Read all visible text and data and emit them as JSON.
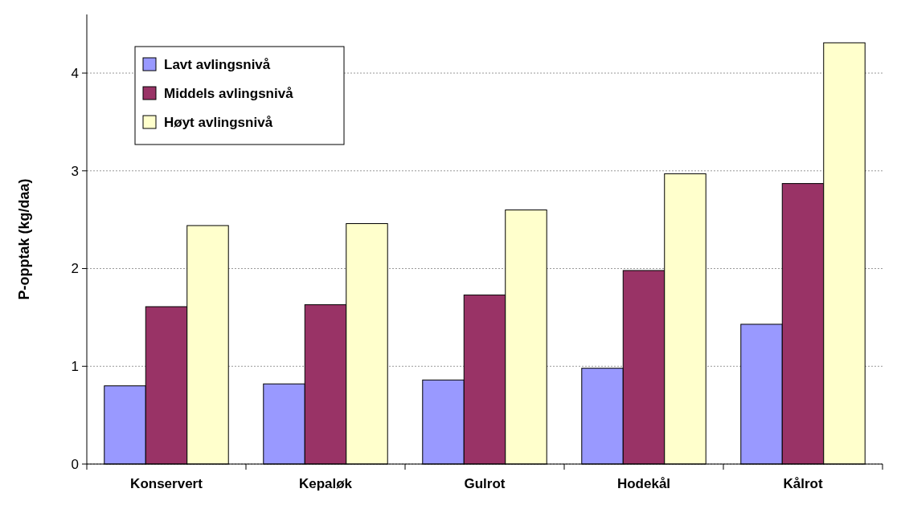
{
  "chart_data": {
    "type": "bar",
    "ylabel": "P-opptak (kg/daa)",
    "categories": [
      "Konservert",
      "Kepaløk",
      "Gulrot",
      "Hodekål",
      "Kålrot"
    ],
    "series": [
      {
        "name": "Lavt avlingsnivå",
        "color": "#9999ff",
        "values": [
          0.8,
          0.82,
          0.86,
          0.98,
          1.43
        ]
      },
      {
        "name": "Middels avlingsnivå",
        "color": "#993366",
        "values": [
          1.61,
          1.63,
          1.73,
          1.98,
          2.87
        ]
      },
      {
        "name": "Høyt avlingsnivå",
        "color": "#ffffcc",
        "values": [
          2.44,
          2.46,
          2.6,
          2.97,
          4.31
        ]
      }
    ],
    "ylim": [
      0,
      4.6
    ],
    "yticks": [
      0,
      1,
      2,
      3,
      4
    ],
    "grid": "y",
    "legend": "top left"
  }
}
